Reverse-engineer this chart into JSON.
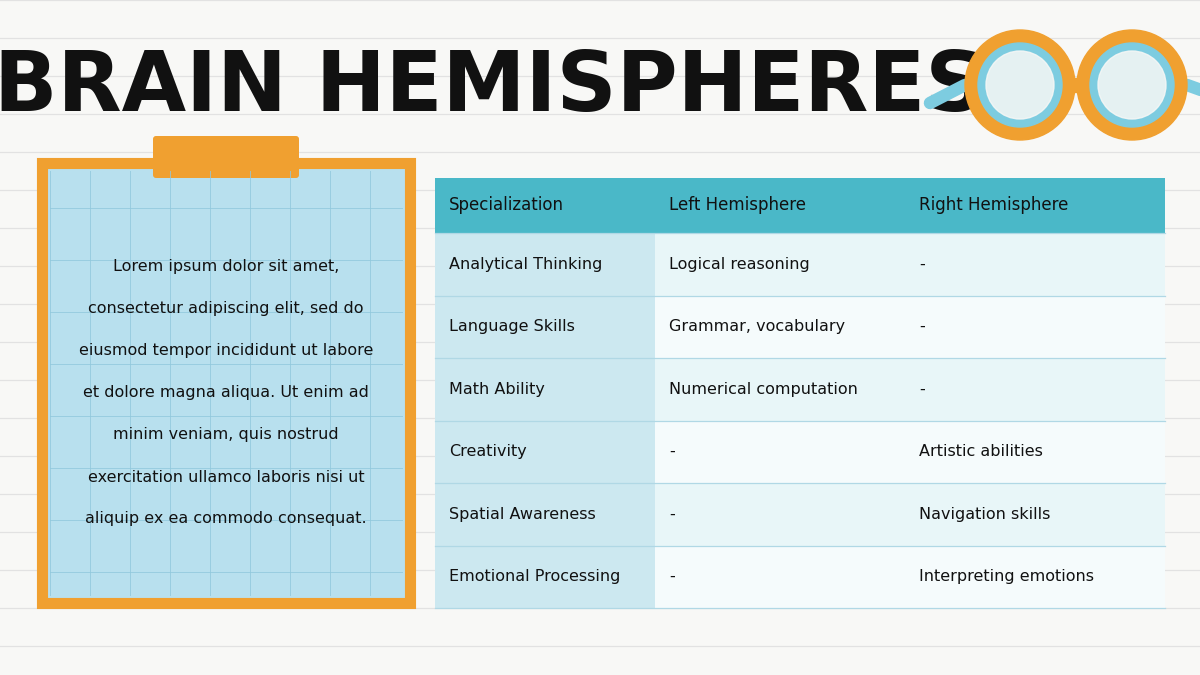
{
  "title": "BRAIN HEMISPHERES",
  "title_fontsize": 60,
  "title_color": "#111111",
  "background_color": "#f8f8f6",
  "bg_line_color": "#e2e2e2",
  "sticky_note": {
    "text": "Lorem ipsum dolor sit amet,\n\nconsectetur adipiscing elit, sed do\n\neiusmod tempor incididunt ut labore\n\net dolore magna aliqua. Ut enim ad\n\nminim veniam, quis nostrud\n\nexercitation ullamco laboris nisi ut\n\naliquip ex ea commodo consequat.",
    "bg_color": "#b8e0ee",
    "tape_color": "#f0a030",
    "text_color": "#111111",
    "fontsize": 11.5
  },
  "table": {
    "header_bg": "#4ab8c8",
    "header_text_color": "#111111",
    "left_col_bg": "#cce8f0",
    "row_bg_alt": "#e8f6f8",
    "row_bg_main": "#f5fbfc",
    "row_line_color": "#b0d8e5",
    "text_color": "#111111",
    "header_fontsize": 12,
    "cell_fontsize": 11.5,
    "headers": [
      "Specialization",
      "Left Hemisphere",
      "Right Hemisphere"
    ],
    "rows": [
      [
        "Analytical Thinking",
        "Logical reasoning",
        "-"
      ],
      [
        "Language Skills",
        "Grammar, vocabulary",
        "-"
      ],
      [
        "Math Ability",
        "Numerical computation",
        "-"
      ],
      [
        "Creativity",
        "-",
        "Artistic abilities"
      ],
      [
        "Spatial Awareness",
        "-",
        "Navigation skills"
      ],
      [
        "Emotional Processing",
        "-",
        "Interpreting emotions"
      ]
    ]
  },
  "glasses": {
    "outer_color": "#f0a030",
    "inner_color": "#7dcce0"
  }
}
